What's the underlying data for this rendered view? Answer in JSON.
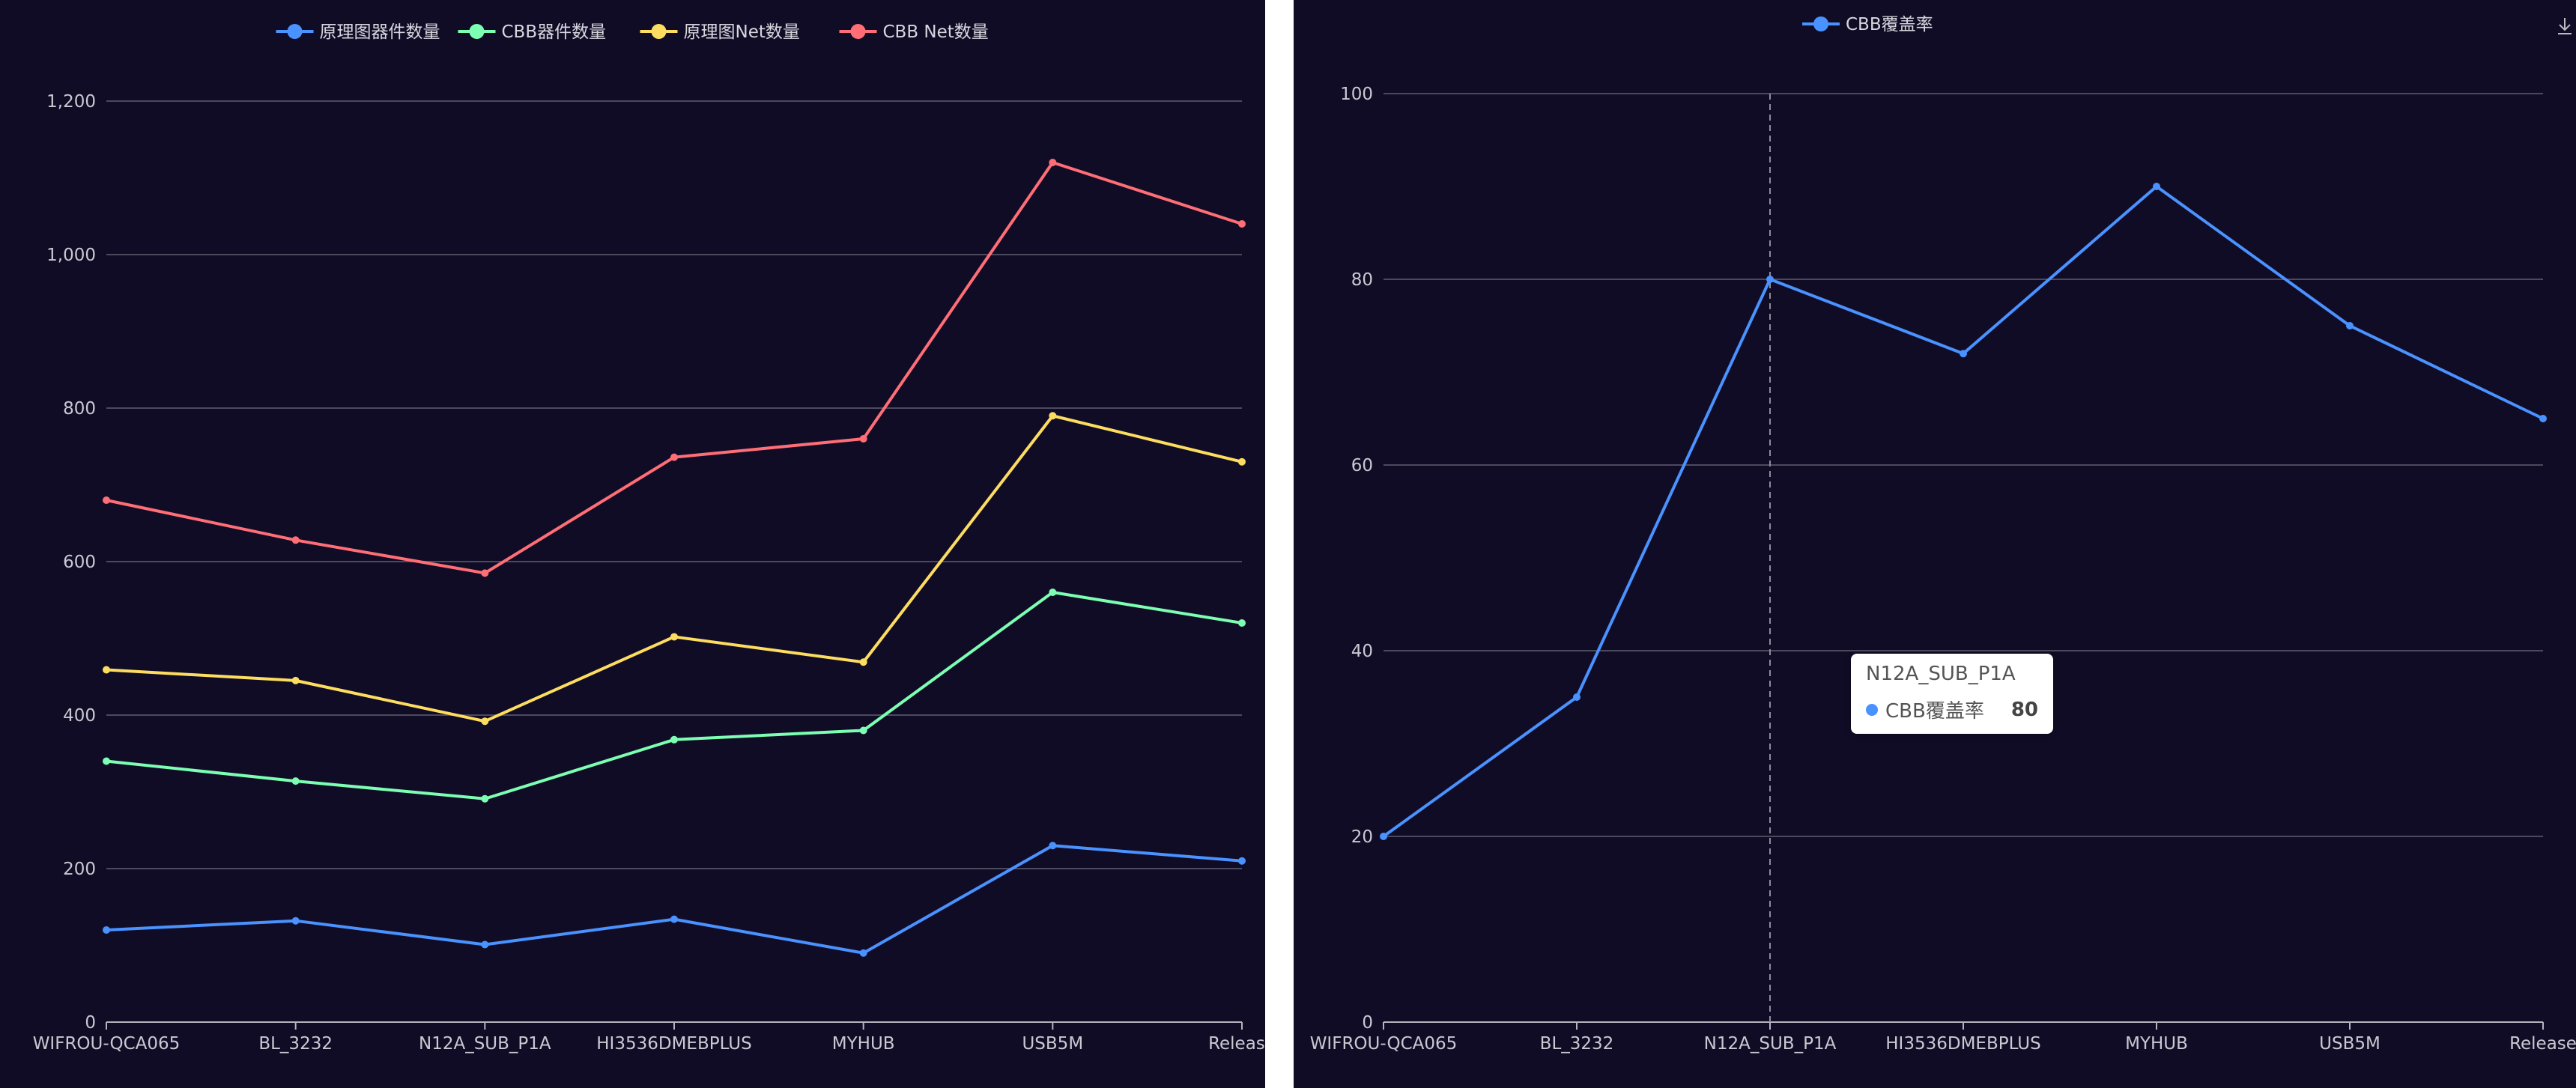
{
  "chart_data": [
    {
      "type": "line",
      "categories": [
        "WIFROU-QCA065",
        "BL_3232",
        "N12A_SUB_P1A",
        "HI3536DMEBPLUS",
        "MYHUB",
        "USB5M",
        "Release"
      ],
      "series": [
        {
          "name": "原理图器件数量",
          "color": "#4992ff",
          "values": [
            120,
            132,
            101,
            134,
            90,
            230,
            210
          ]
        },
        {
          "name": "CBB器件数量",
          "color": "#7cffb2",
          "values": [
            340,
            314,
            291,
            368,
            380,
            560,
            520
          ]
        },
        {
          "name": "原理图Net数量",
          "color": "#fddd60",
          "values": [
            459,
            445,
            392,
            502,
            469,
            790,
            730
          ]
        },
        {
          "name": "CBB Net数量",
          "color": "#ff6e76",
          "values": [
            680,
            628,
            585,
            736,
            760,
            1120,
            1040
          ]
        }
      ],
      "yticks": [
        "0",
        "200",
        "400",
        "600",
        "800",
        "1,000",
        "1,200"
      ],
      "ylim": [
        0,
        1200
      ],
      "legend_position": "top-center"
    },
    {
      "type": "line",
      "categories": [
        "WIFROU-QCA065",
        "BL_3232",
        "N12A_SUB_P1A",
        "HI3536DMEBPLUS",
        "MYHUB",
        "USB5M",
        "Release"
      ],
      "series": [
        {
          "name": "CBB覆盖率",
          "color": "#4992ff",
          "values": [
            20,
            35,
            80,
            72,
            90,
            75,
            65
          ]
        }
      ],
      "yticks": [
        "0",
        "20",
        "40",
        "60",
        "80",
        "100"
      ],
      "ylim": [
        0,
        100
      ],
      "legend_position": "top-center",
      "tooltip": {
        "category": "N12A_SUB_P1A",
        "series": "CBB覆盖率",
        "value": "80"
      }
    }
  ],
  "toolbox": {
    "icon": "download-icon"
  }
}
